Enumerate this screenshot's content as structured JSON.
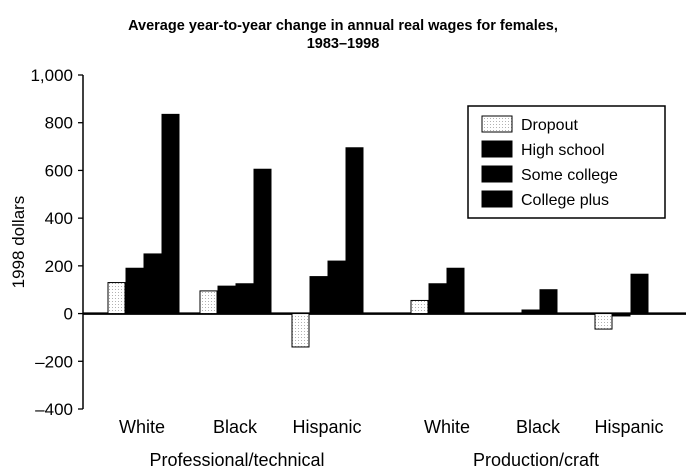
{
  "chart_data": {
    "type": "bar",
    "title_line1": "Average year-to-year change in annual real wages for females,",
    "title_line2": "1983–1998",
    "ylabel": "1998 dollars",
    "xlabel": "",
    "ylim": [
      -400,
      1000
    ],
    "yticks": [
      -400,
      -200,
      0,
      200,
      400,
      600,
      800,
      1000
    ],
    "ytick_labels": [
      "–400",
      "–200",
      "0",
      "200",
      "400",
      "600",
      "800",
      "1,000"
    ],
    "grid": false,
    "legend_position": "top-right",
    "groups": [
      "Professional/technical",
      "Production/craft"
    ],
    "categories": [
      "White",
      "Black",
      "Hispanic",
      "White",
      "Black",
      "Hispanic"
    ],
    "category_group": [
      0,
      0,
      0,
      1,
      1,
      1
    ],
    "series": [
      {
        "name": "Dropout",
        "values": [
          130,
          95,
          -140,
          55,
          0,
          -65
        ],
        "color": "#ffffff"
      },
      {
        "name": "High school",
        "values": [
          190,
          115,
          155,
          125,
          15,
          -10
        ],
        "color": "#000000"
      },
      {
        "name": "Some college",
        "values": [
          250,
          125,
          220,
          190,
          100,
          165
        ],
        "color": "#000000"
      },
      {
        "name": "College plus",
        "values": [
          835,
          605,
          695,
          0,
          0,
          0
        ],
        "color": "#000000"
      }
    ]
  }
}
